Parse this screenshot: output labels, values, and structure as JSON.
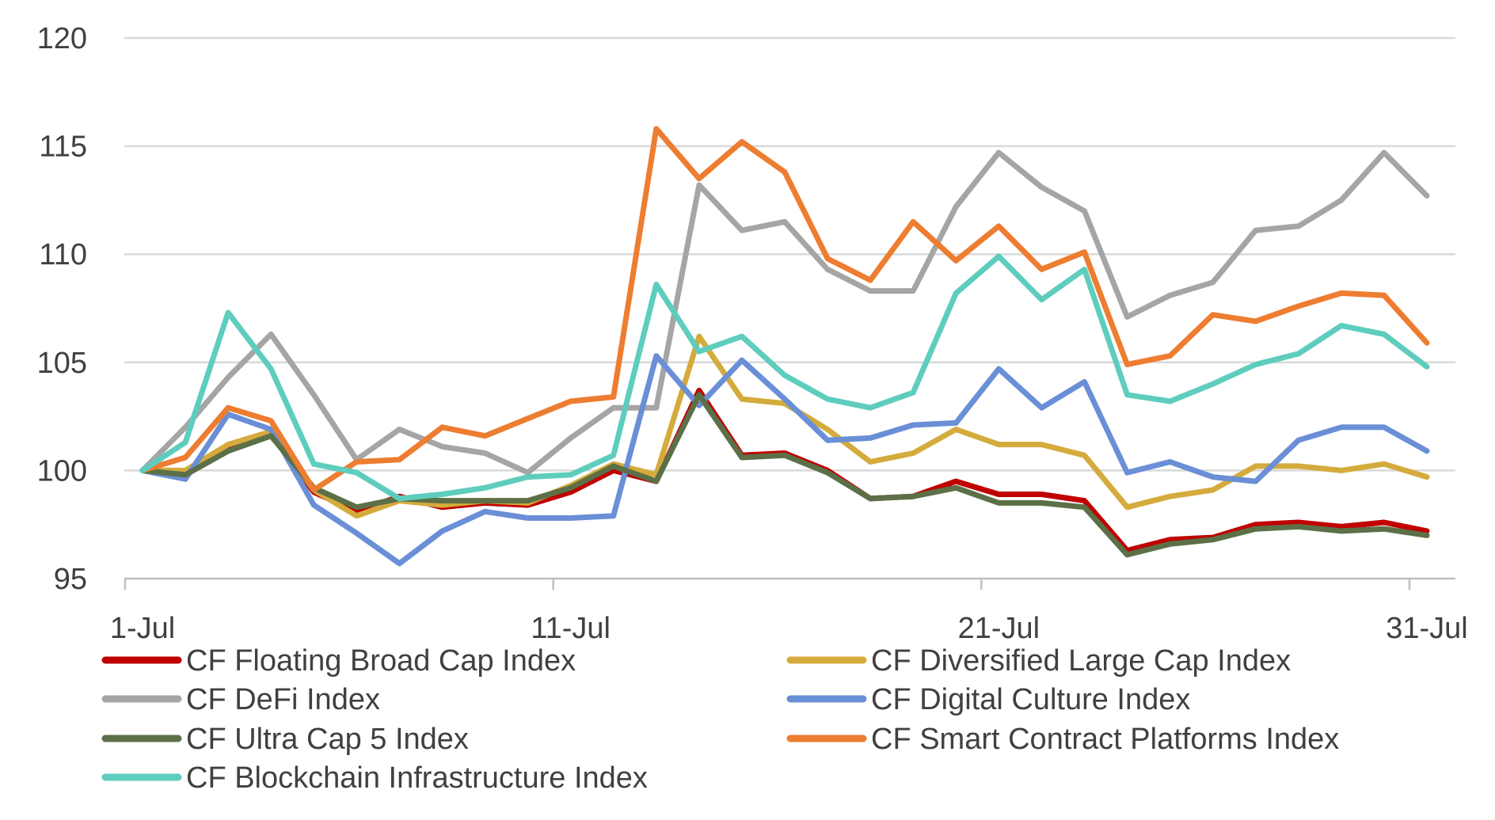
{
  "chart_data": {
    "type": "line",
    "title": "",
    "xlabel": "",
    "ylabel": "",
    "ylim": [
      95,
      120
    ],
    "yticks": [
      "95",
      "100",
      "105",
      "110",
      "115",
      "120"
    ],
    "xticks": [
      {
        "label": "1-Jul",
        "day": 1
      },
      {
        "label": "11-Jul",
        "day": 11
      },
      {
        "label": "21-Jul",
        "day": 21
      },
      {
        "label": "31-Jul",
        "day": 31
      }
    ],
    "x": [
      1,
      2,
      3,
      4,
      5,
      6,
      7,
      8,
      9,
      10,
      11,
      12,
      13,
      14,
      15,
      16,
      17,
      18,
      19,
      20,
      21,
      22,
      23,
      24,
      25,
      26,
      27,
      28,
      29,
      30,
      31
    ],
    "grid": true,
    "legend_position": "bottom",
    "series": [
      {
        "name": "CF Floating Broad Cap Index",
        "color": "#C00000",
        "values": [
          100,
          99.9,
          101.1,
          101.7,
          99.0,
          98.1,
          98.8,
          98.3,
          98.5,
          98.4,
          99.0,
          100.0,
          99.5,
          103.7,
          100.7,
          100.8,
          100.0,
          98.7,
          98.8,
          99.5,
          98.9,
          98.9,
          98.6,
          96.3,
          96.8,
          96.9,
          97.5,
          97.6,
          97.4,
          97.6,
          97.2
        ]
      },
      {
        "name": "CF Diversified Large Cap Index",
        "color": "#D4AB3C",
        "values": [
          100,
          100.0,
          101.2,
          101.8,
          99.1,
          97.9,
          98.6,
          98.4,
          98.6,
          98.5,
          99.3,
          100.3,
          99.8,
          106.2,
          103.3,
          103.1,
          101.9,
          100.4,
          100.8,
          101.9,
          101.2,
          101.2,
          100.7,
          98.3,
          98.8,
          99.1,
          100.2,
          100.2,
          100.0,
          100.3,
          99.7
        ]
      },
      {
        "name": "CF DeFi Index",
        "color": "#A5A5A5",
        "values": [
          100,
          102.0,
          104.3,
          106.3,
          103.5,
          100.5,
          101.9,
          101.1,
          100.8,
          99.9,
          101.5,
          102.9,
          102.9,
          113.2,
          111.1,
          111.5,
          109.3,
          108.3,
          108.3,
          112.2,
          114.7,
          113.1,
          112.0,
          107.1,
          108.1,
          108.7,
          111.1,
          111.3,
          112.5,
          114.7,
          112.7
        ]
      },
      {
        "name": "CF Digital Culture Index",
        "color": "#6A8FD6",
        "values": [
          100,
          99.6,
          102.6,
          101.9,
          98.4,
          97.1,
          95.7,
          97.2,
          98.1,
          97.8,
          97.8,
          97.9,
          105.3,
          103.0,
          105.1,
          103.3,
          101.4,
          101.5,
          102.1,
          102.2,
          104.7,
          102.9,
          104.1,
          99.9,
          100.4,
          99.7,
          99.5,
          101.4,
          102.0,
          102.0,
          100.9
        ]
      },
      {
        "name": "CF Ultra Cap 5 Index",
        "color": "#5C7047",
        "values": [
          100,
          99.8,
          100.9,
          101.6,
          99.2,
          98.3,
          98.7,
          98.6,
          98.6,
          98.6,
          99.2,
          100.2,
          99.5,
          103.5,
          100.6,
          100.7,
          99.9,
          98.7,
          98.8,
          99.2,
          98.5,
          98.5,
          98.3,
          96.1,
          96.6,
          96.8,
          97.3,
          97.4,
          97.2,
          97.3,
          97.0
        ]
      },
      {
        "name": "CF Smart Contract Platforms Index",
        "color": "#ED7D31",
        "values": [
          100,
          100.6,
          102.9,
          102.3,
          99.1,
          100.4,
          100.5,
          102.0,
          101.6,
          102.4,
          103.2,
          103.4,
          115.8,
          113.5,
          115.2,
          113.8,
          109.8,
          108.8,
          111.5,
          109.7,
          111.3,
          109.3,
          110.1,
          104.9,
          105.3,
          107.2,
          106.9,
          107.6,
          108.2,
          108.1,
          105.9
        ]
      },
      {
        "name": "CF Blockchain Infrastructure Index",
        "color": "#5ECDBE",
        "values": [
          100,
          101.3,
          107.3,
          104.7,
          100.3,
          99.9,
          98.7,
          98.9,
          99.2,
          99.7,
          99.8,
          100.7,
          108.6,
          105.5,
          106.2,
          104.4,
          103.3,
          102.9,
          103.6,
          108.2,
          109.9,
          107.9,
          109.3,
          103.5,
          103.2,
          104.0,
          104.9,
          105.4,
          106.7,
          106.3,
          104.8
        ]
      }
    ]
  }
}
